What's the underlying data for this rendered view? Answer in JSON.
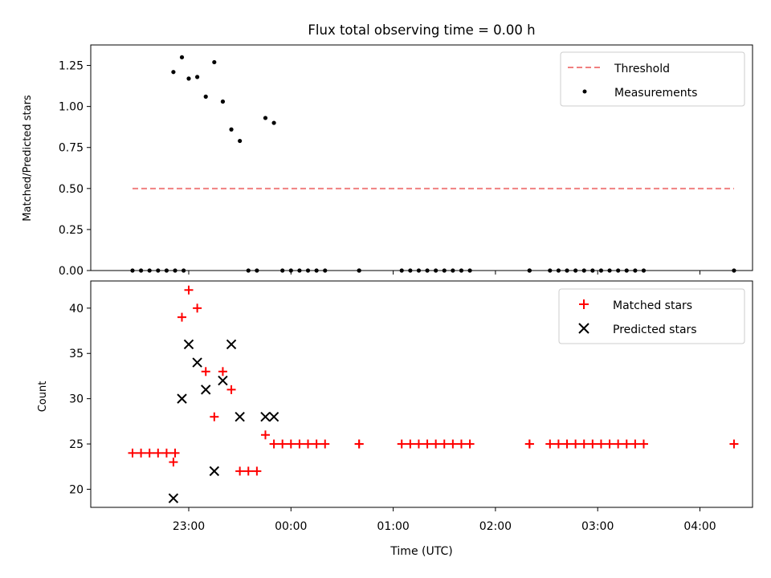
{
  "chart_data": [
    {
      "type": "scatter",
      "title": "Flux total observing time = 0.00 h",
      "xlabel": "",
      "ylabel": "Matched/Predicted stars",
      "ylim": [
        0.0,
        1.375
      ],
      "yticks": [
        "0.00",
        "0.25",
        "0.50",
        "0.75",
        "1.00",
        "1.25"
      ],
      "grid": false,
      "legend": {
        "placement": "top-right",
        "entries": [
          "Threshold",
          "Measurements"
        ]
      },
      "series": [
        {
          "name": "Threshold",
          "kind": "line",
          "style": "dashed",
          "color": "#f08080",
          "x": [
            "22:27",
            "04:20"
          ],
          "y": [
            0.5,
            0.5
          ]
        },
        {
          "name": "Measurements",
          "kind": "scatter",
          "marker": "dot",
          "color": "#000000",
          "points": [
            [
              "22:27",
              0.0
            ],
            [
              "22:32",
              0.0
            ],
            [
              "22:37",
              0.0
            ],
            [
              "22:42",
              0.0
            ],
            [
              "22:47",
              0.0
            ],
            [
              "22:52",
              0.0
            ],
            [
              "22:57",
              0.0
            ],
            [
              "22:51",
              1.21
            ],
            [
              "22:56",
              1.3
            ],
            [
              "23:00",
              1.17
            ],
            [
              "23:05",
              1.18
            ],
            [
              "23:10",
              1.06
            ],
            [
              "23:15",
              1.27
            ],
            [
              "23:20",
              1.03
            ],
            [
              "23:25",
              0.86
            ],
            [
              "23:30",
              0.79
            ],
            [
              "23:35",
              0.0
            ],
            [
              "23:40",
              0.0
            ],
            [
              "23:45",
              0.93
            ],
            [
              "23:50",
              0.9
            ],
            [
              "23:55",
              0.0
            ],
            [
              "00:00",
              0.0
            ],
            [
              "00:05",
              0.0
            ],
            [
              "00:10",
              0.0
            ],
            [
              "00:15",
              0.0
            ],
            [
              "00:20",
              0.0
            ],
            [
              "00:40",
              0.0
            ],
            [
              "00:40",
              0.0
            ],
            [
              "01:05",
              0.0
            ],
            [
              "01:10",
              0.0
            ],
            [
              "01:15",
              0.0
            ],
            [
              "01:20",
              0.0
            ],
            [
              "01:25",
              0.0
            ],
            [
              "01:30",
              0.0
            ],
            [
              "01:35",
              0.0
            ],
            [
              "01:40",
              0.0
            ],
            [
              "01:45",
              0.0
            ],
            [
              "02:20",
              0.0
            ],
            [
              "02:20",
              0.0
            ],
            [
              "02:32",
              0.0
            ],
            [
              "02:37",
              0.0
            ],
            [
              "02:42",
              0.0
            ],
            [
              "02:47",
              0.0
            ],
            [
              "02:52",
              0.0
            ],
            [
              "02:57",
              0.0
            ],
            [
              "03:02",
              0.0
            ],
            [
              "03:07",
              0.0
            ],
            [
              "03:12",
              0.0
            ],
            [
              "03:17",
              0.0
            ],
            [
              "03:22",
              0.0
            ],
            [
              "03:27",
              0.0
            ],
            [
              "04:20",
              0.0
            ]
          ]
        }
      ]
    },
    {
      "type": "scatter",
      "title": "",
      "xlabel": "Time (UTC)",
      "ylabel": "Count",
      "ylim": [
        18,
        43
      ],
      "yticks": [
        "20",
        "25",
        "30",
        "35",
        "40"
      ],
      "xticks": [
        "23:00",
        "00:00",
        "01:00",
        "02:00",
        "03:00",
        "04:00"
      ],
      "xlim": [
        "22:07",
        "04:35"
      ],
      "grid": false,
      "legend": {
        "placement": "top-right",
        "entries": [
          "Matched stars",
          "Predicted stars"
        ]
      },
      "series": [
        {
          "name": "Matched stars",
          "marker": "plus",
          "color": "#ff0000",
          "points": [
            [
              "22:27",
              24
            ],
            [
              "22:32",
              24
            ],
            [
              "22:37",
              24
            ],
            [
              "22:42",
              24
            ],
            [
              "22:47",
              24
            ],
            [
              "22:52",
              24
            ],
            [
              "22:51",
              23
            ],
            [
              "22:56",
              39
            ],
            [
              "23:00",
              42
            ],
            [
              "23:05",
              40
            ],
            [
              "23:10",
              33
            ],
            [
              "23:15",
              28
            ],
            [
              "23:20",
              33
            ],
            [
              "23:25",
              31
            ],
            [
              "23:30",
              22
            ],
            [
              "23:35",
              22
            ],
            [
              "23:40",
              22
            ],
            [
              "23:45",
              26
            ],
            [
              "23:50",
              25
            ],
            [
              "23:55",
              25
            ],
            [
              "00:00",
              25
            ],
            [
              "00:05",
              25
            ],
            [
              "00:10",
              25
            ],
            [
              "00:15",
              25
            ],
            [
              "00:20",
              25
            ],
            [
              "00:40",
              25
            ],
            [
              "00:40",
              25
            ],
            [
              "01:05",
              25
            ],
            [
              "01:10",
              25
            ],
            [
              "01:15",
              25
            ],
            [
              "01:20",
              25
            ],
            [
              "01:25",
              25
            ],
            [
              "01:30",
              25
            ],
            [
              "01:35",
              25
            ],
            [
              "01:40",
              25
            ],
            [
              "01:45",
              25
            ],
            [
              "02:20",
              25
            ],
            [
              "02:20",
              25
            ],
            [
              "02:32",
              25
            ],
            [
              "02:37",
              25
            ],
            [
              "02:42",
              25
            ],
            [
              "02:47",
              25
            ],
            [
              "02:52",
              25
            ],
            [
              "02:57",
              25
            ],
            [
              "03:02",
              25
            ],
            [
              "03:07",
              25
            ],
            [
              "03:12",
              25
            ],
            [
              "03:17",
              25
            ],
            [
              "03:22",
              25
            ],
            [
              "03:27",
              25
            ],
            [
              "04:20",
              25
            ]
          ]
        },
        {
          "name": "Predicted stars",
          "marker": "x",
          "color": "#000000",
          "points": [
            [
              "22:51",
              19
            ],
            [
              "22:56",
              30
            ],
            [
              "23:00",
              36
            ],
            [
              "23:05",
              34
            ],
            [
              "23:10",
              31
            ],
            [
              "23:15",
              22
            ],
            [
              "23:20",
              32
            ],
            [
              "23:25",
              36
            ],
            [
              "23:30",
              28
            ],
            [
              "23:45",
              28
            ],
            [
              "23:50",
              28
            ]
          ]
        }
      ]
    }
  ]
}
